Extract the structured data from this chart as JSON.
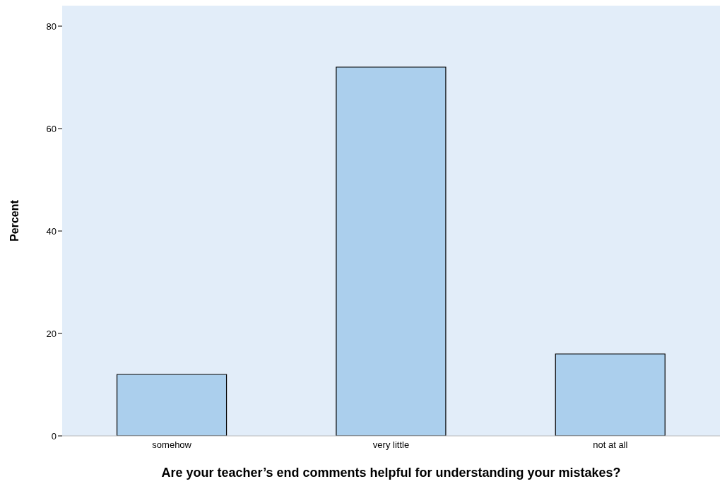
{
  "chart_data": {
    "type": "bar",
    "xlabel": "Are your teacher’s end comments helpful for understanding your mistakes?",
    "ylabel": "Percent",
    "categories": [
      "somehow",
      "very little",
      "not at all"
    ],
    "values": [
      12,
      72,
      16
    ],
    "color": "#abcfed",
    "ylim": [
      0,
      84
    ],
    "yticks": [
      0,
      20,
      40,
      60,
      80
    ]
  }
}
